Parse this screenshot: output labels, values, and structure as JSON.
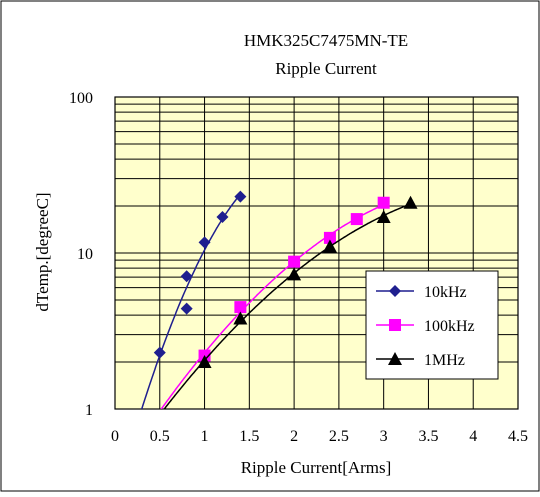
{
  "chart_data": {
    "type": "line",
    "title": "HMK325C7475MN-TE",
    "subtitle": "Ripple Current",
    "xlabel": "Ripple Current[Arms]",
    "ylabel": "dTemp.[degreeC]",
    "xlim": [
      0,
      4.5
    ],
    "ylim": [
      1,
      100
    ],
    "yscale": "log",
    "x_ticks": [
      "0",
      "0.5",
      "1",
      "1.5",
      "2",
      "2.5",
      "3",
      "3.5",
      "4",
      "4.5"
    ],
    "y_ticks": [
      "1",
      "10",
      "100"
    ],
    "grid": "horizontal log minor gridlines",
    "legend_position": "inside right",
    "colors": {
      "plot_background": "#FFFFCC",
      "page_background": "#FFFFFF",
      "grid": "#000000"
    },
    "series": [
      {
        "name": "10kHz",
        "color": "#1F1F8F",
        "marker": "diamond",
        "x": [
          0.5,
          0.8,
          0.8,
          1.0,
          1.2,
          1.4
        ],
        "y": [
          2.3,
          4.4,
          7.1,
          11.7,
          17.0,
          23.0
        ]
      },
      {
        "name": "100kHz",
        "color": "#FF00FF",
        "marker": "square",
        "x": [
          1.0,
          1.4,
          2.0,
          2.4,
          2.7,
          3.0
        ],
        "y": [
          2.2,
          4.5,
          8.8,
          12.5,
          16.5,
          21.0
        ]
      },
      {
        "name": "1MHz",
        "color": "#000000",
        "marker": "triangle",
        "x": [
          1.0,
          1.4,
          2.0,
          2.4,
          3.0,
          3.3
        ],
        "y": [
          2.0,
          3.8,
          7.3,
          11.0,
          17.0,
          21.0
        ]
      }
    ]
  }
}
